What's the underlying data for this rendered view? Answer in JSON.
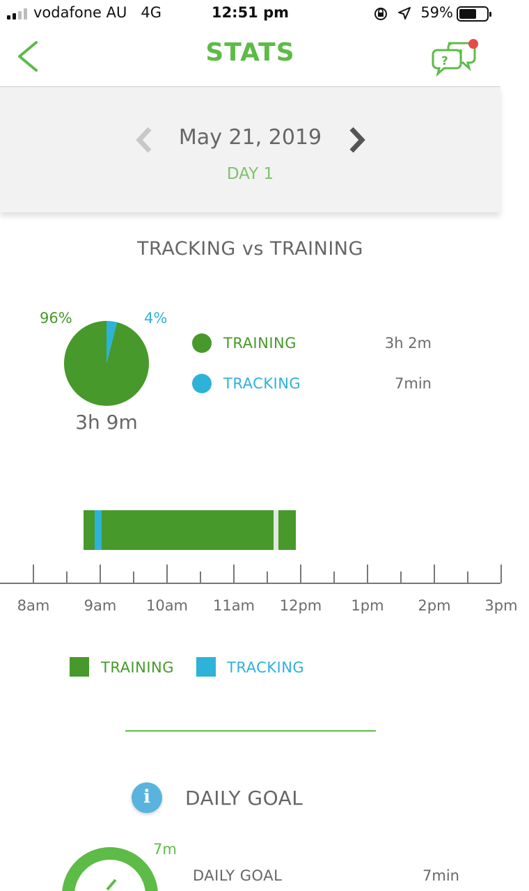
{
  "status_bar": {
    "carrier": "vodafone AU",
    "network": "4G",
    "time": "12:51 pm",
    "battery": "59%"
  },
  "header": {
    "title": "STATS",
    "back_icon": "chevron-left-icon",
    "help_icon": "chat-help-icon"
  },
  "date_nav": {
    "date": "May 21, 2019",
    "day": "DAY 1"
  },
  "tracking_vs_training": {
    "title": "TRACKING vs TRAINING",
    "training_pct": "96%",
    "tracking_pct": "4%",
    "total": "3h 9m",
    "legend": [
      {
        "label": "TRAINING",
        "value": "3h 2m",
        "color": "#46992a"
      },
      {
        "label": "TRACKING",
        "value": "7min",
        "color": "#2db2d9"
      }
    ]
  },
  "timeline": {
    "ticks": [
      "8am",
      "9am",
      "10am",
      "11am",
      "12pm",
      "1pm",
      "2pm",
      "3pm"
    ],
    "legend": [
      {
        "label": "TRAINING",
        "color": "#46992a"
      },
      {
        "label": "TRACKING",
        "color": "#2db2d9"
      }
    ]
  },
  "daily_goal": {
    "title": "DAILY GOAL",
    "ring_value": "7m",
    "label": "DAILY GOAL",
    "value": "7min"
  },
  "chart_data": {
    "type": "pie",
    "categories": [
      "TRAINING",
      "TRACKING"
    ],
    "values": [
      96,
      4
    ],
    "colors": [
      "#46992a",
      "#2db2d9"
    ]
  }
}
